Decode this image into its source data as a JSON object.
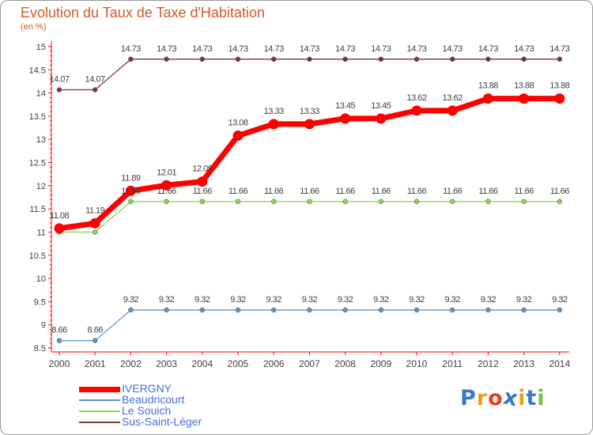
{
  "header": {
    "title": "Evolution du Taux de Taxe d'Habitation",
    "subtitle": "(en %)"
  },
  "chart_data": {
    "type": "line",
    "title": "Evolution du Taux de Taxe d'Habitation",
    "ylabel": "(en %)",
    "xlabel": "",
    "ylim": [
      8.5,
      15
    ],
    "y_ticks": [
      "8.5",
      "9",
      "9.5",
      "10",
      "10.5",
      "11",
      "11.5",
      "12",
      "12.5",
      "13",
      "13.5",
      "14",
      "14.5",
      "15"
    ],
    "categories": [
      "2000",
      "2001",
      "2002",
      "2003",
      "2004",
      "2005",
      "2006",
      "2007",
      "2008",
      "2009",
      "2010",
      "2011",
      "2012",
      "2013",
      "2014"
    ],
    "series": [
      {
        "name": "IVERGNY",
        "color": "#ff0000",
        "values": [
          11.08,
          11.19,
          11.89,
          12.01,
          12.09,
          13.08,
          13.33,
          13.33,
          13.45,
          13.45,
          13.62,
          13.62,
          13.88,
          13.88,
          13.88
        ],
        "labels": [
          "11.08",
          "11.19",
          "11.89",
          "12.01",
          "12.09",
          "13.08",
          "13.33",
          "13.33",
          "13.45",
          "13.45",
          "13.62",
          "13.62",
          "13.88",
          "13.88",
          "13.88"
        ]
      },
      {
        "name": "Beaudricourt",
        "color": "#5a96c8",
        "values": [
          8.66,
          8.66,
          9.32,
          9.32,
          9.32,
          9.32,
          9.32,
          9.32,
          9.32,
          9.32,
          9.32,
          9.32,
          9.32,
          9.32,
          9.32
        ],
        "labels": [
          "8.66",
          "8.66",
          "9.32",
          "9.32",
          "9.32",
          "9.32",
          "9.32",
          "9.32",
          "9.32",
          "9.32",
          "9.32",
          "9.32",
          "9.32",
          "9.32",
          "9.32"
        ]
      },
      {
        "name": "Le Souich",
        "color": "#8cd25a",
        "values": [
          11.0,
          11.0,
          11.66,
          11.66,
          11.66,
          11.66,
          11.66,
          11.66,
          11.66,
          11.66,
          11.66,
          11.66,
          11.66,
          11.66,
          11.66
        ],
        "labels": [
          "",
          "",
          "11.66",
          "11.66",
          "11.66",
          "11.66",
          "11.66",
          "11.66",
          "11.66",
          "11.66",
          "11.66",
          "11.66",
          "11.66",
          "11.66",
          "11.66"
        ]
      },
      {
        "name": "Sus-Saint-Léger",
        "color": "#7a3838",
        "values": [
          14.07,
          14.07,
          14.73,
          14.73,
          14.73,
          14.73,
          14.73,
          14.73,
          14.73,
          14.73,
          14.73,
          14.73,
          14.73,
          14.73,
          14.73
        ],
        "labels": [
          "14.07",
          "14.07",
          "14.73",
          "14.73",
          "14.73",
          "14.73",
          "14.73",
          "14.73",
          "14.73",
          "14.73",
          "14.73",
          "14.73",
          "14.73",
          "14.73",
          "14.73"
        ]
      }
    ],
    "grid": false,
    "legend_position": "bottom-left"
  },
  "logo": {
    "letters": [
      "P",
      "r",
      "o",
      "x",
      "i",
      "t",
      "i"
    ],
    "colors": [
      "#3a78c8",
      "#e8a020",
      "#e84020",
      "#3a78c8",
      "#e8a020",
      "#3a78c8",
      "#78c040"
    ]
  }
}
